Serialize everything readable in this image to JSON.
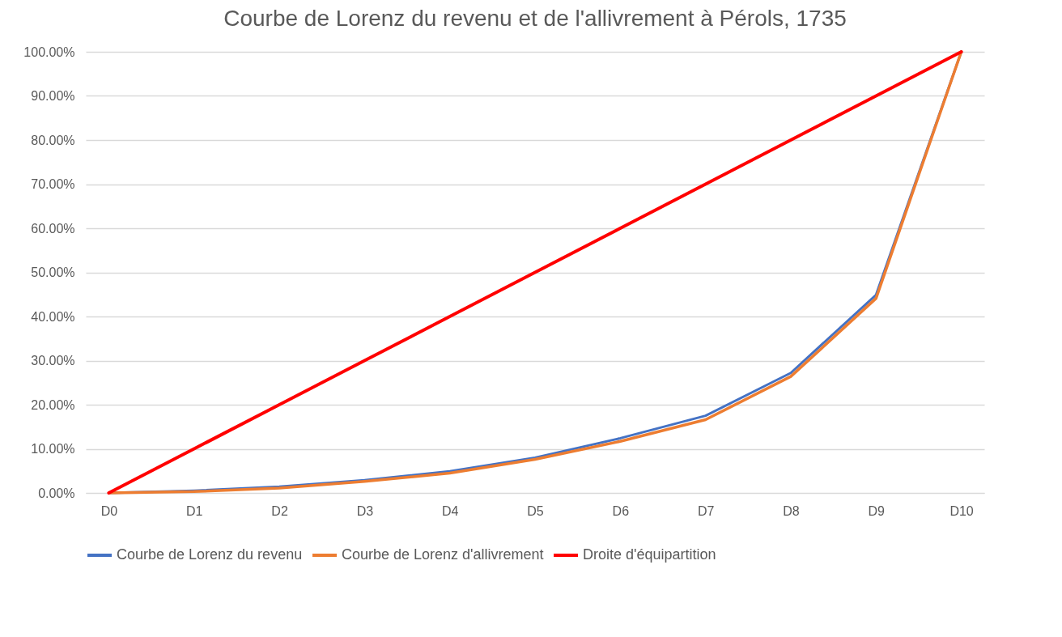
{
  "chart_data": {
    "type": "line",
    "title": "Courbe de Lorenz du revenu et de l'allivrement à Pérols, 1735",
    "categories": [
      "D0",
      "D1",
      "D2",
      "D3",
      "D4",
      "D5",
      "D6",
      "D7",
      "D8",
      "D9",
      "D10"
    ],
    "series": [
      {
        "name": "Courbe de Lorenz du revenu",
        "color": "#4472c4",
        "values": [
          0,
          0.5,
          1.4,
          2.9,
          4.9,
          8.0,
          12.4,
          17.5,
          27.2,
          44.9,
          100
        ]
      },
      {
        "name": "Courbe de Lorenz d'allivrement",
        "color": "#ed7d31",
        "values": [
          0,
          0.3,
          1.1,
          2.6,
          4.5,
          7.6,
          11.7,
          16.6,
          26.4,
          44.1,
          100
        ]
      },
      {
        "name": "Droite d'équipartition",
        "color": "#ff0000",
        "values": [
          0,
          10,
          20,
          30,
          40,
          50,
          60,
          70,
          80,
          90,
          100
        ]
      }
    ],
    "ylim": [
      0,
      100
    ],
    "yticks": [
      {
        "value": 0,
        "label": "0.00%"
      },
      {
        "value": 10,
        "label": "10.00%"
      },
      {
        "value": 20,
        "label": "20.00%"
      },
      {
        "value": 30,
        "label": "30.00%"
      },
      {
        "value": 40,
        "label": "40.00%"
      },
      {
        "value": 50,
        "label": "50.00%"
      },
      {
        "value": 60,
        "label": "60.00%"
      },
      {
        "value": 70,
        "label": "70.00%"
      },
      {
        "value": 80,
        "label": "80.00%"
      },
      {
        "value": 90,
        "label": "90.00%"
      },
      {
        "value": 100,
        "label": "100.00%"
      }
    ],
    "grid": "y",
    "legend": "bottom",
    "marker": "none",
    "line_style": "solid"
  }
}
